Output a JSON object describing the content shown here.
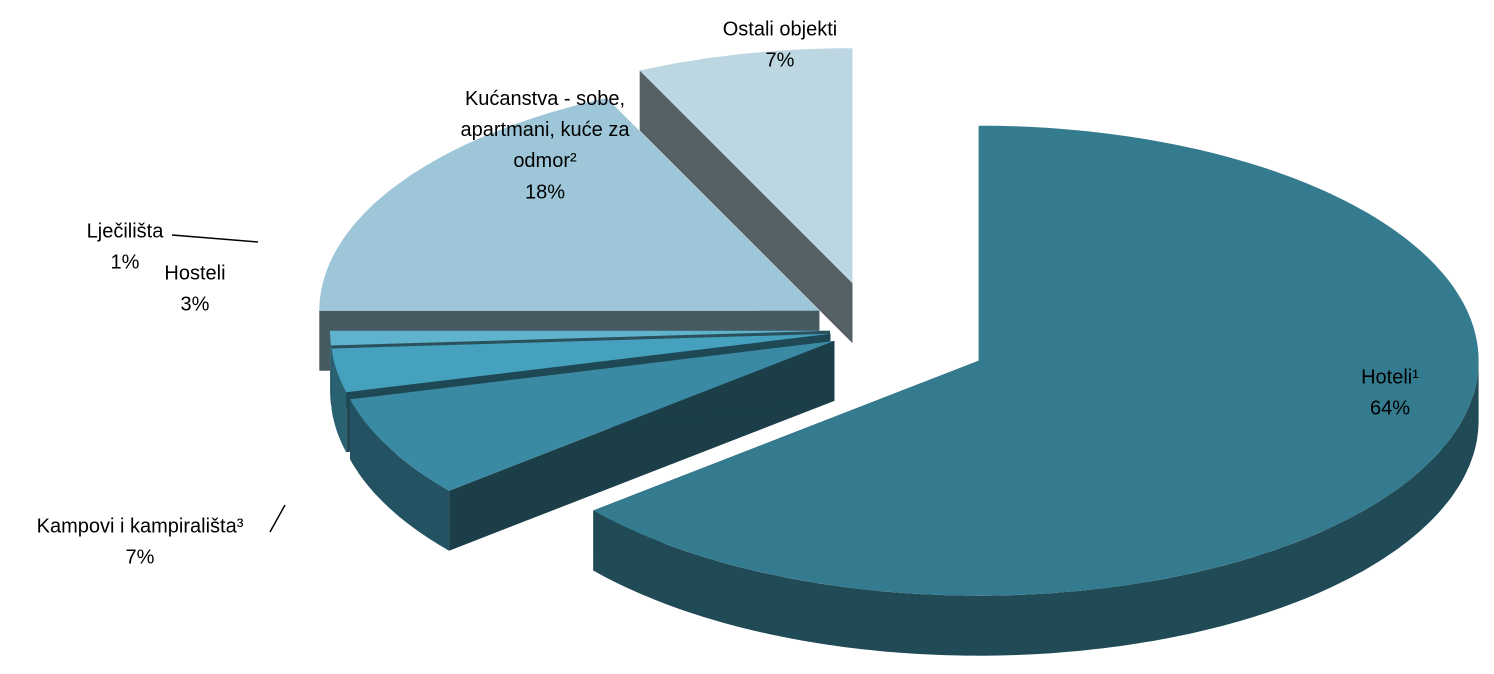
{
  "chart_data": {
    "type": "pie",
    "categories": [
      "Hoteli¹",
      "Kampovi i kampirališta³",
      "Hosteli",
      "Lječilišta",
      "Kućanstva - sobe, apartmani, kuće za odmor²",
      "Ostali objekti"
    ],
    "values": [
      64,
      7,
      3,
      1,
      18,
      7
    ],
    "value_labels": [
      "64%",
      "7%",
      "3%",
      "1%",
      "18%",
      "7%"
    ],
    "colors": [
      "#357b8f",
      "#3b8aa3",
      "#45a1bd",
      "#5fb3cc",
      "#9dc6d8",
      "#bdd7e2"
    ]
  }
}
